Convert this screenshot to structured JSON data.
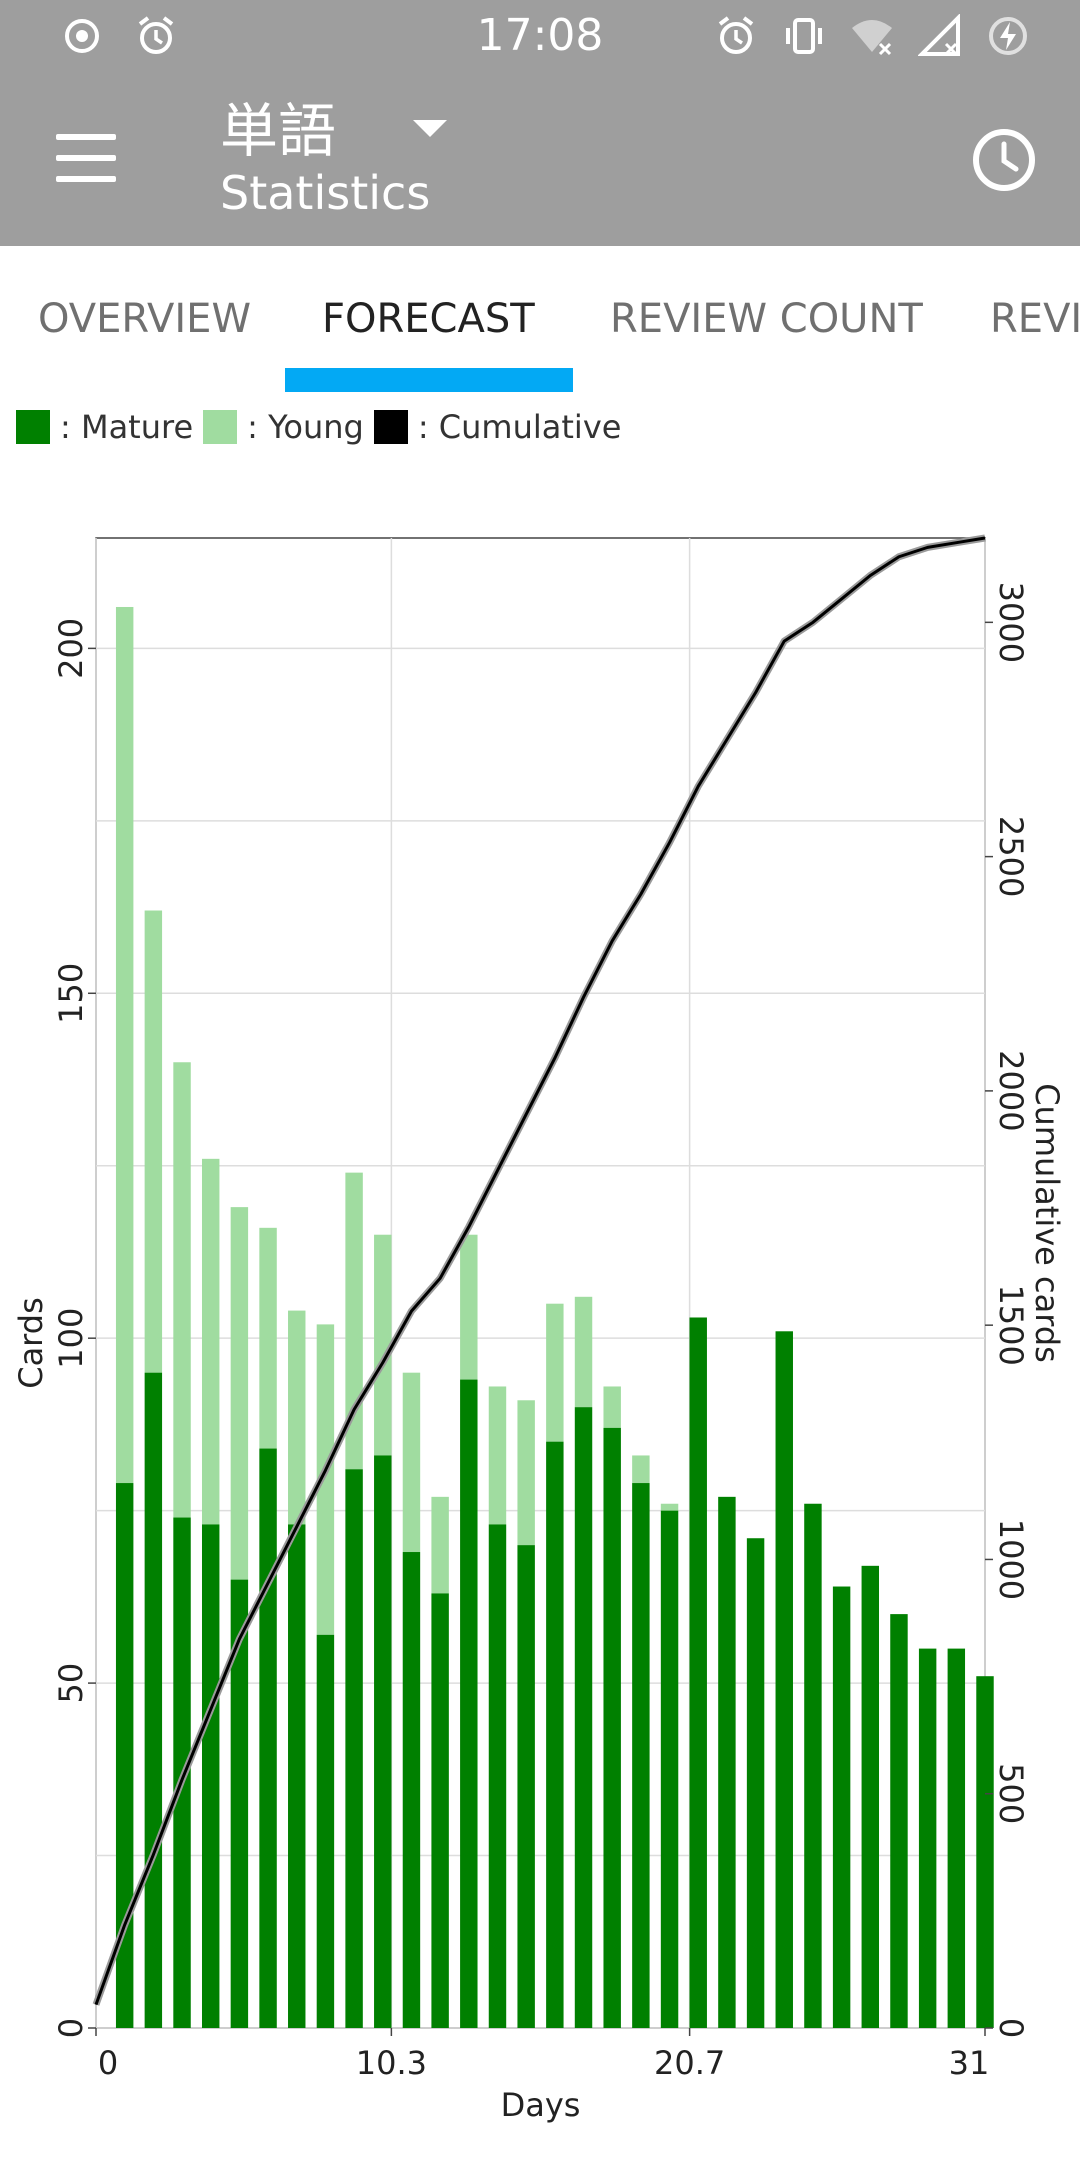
{
  "status_bar": {
    "time": "17:08",
    "left_icons": [
      "record-icon",
      "alarm-icon"
    ],
    "right_icons": [
      "alarm-icon",
      "vibrate-icon",
      "wifi-off-icon",
      "signal-off-icon",
      "battery-charging-icon"
    ]
  },
  "toolbar": {
    "title": "単語",
    "subtitle": "Statistics",
    "menu_icon": "menu-icon",
    "history_icon": "clock-icon"
  },
  "tabs": [
    {
      "label": "OVERVIEW",
      "active": false
    },
    {
      "label": "FORECAST",
      "active": true
    },
    {
      "label": "REVIEW COUNT",
      "active": false
    },
    {
      "label": "REVI",
      "active": false
    }
  ],
  "legend": [
    {
      "label": ": Mature",
      "color": "#008000"
    },
    {
      "label": ": Young",
      "color": "#a0dca0"
    },
    {
      "label": ": Cumulative",
      "color": "#000000"
    }
  ],
  "chart_data": {
    "type": "bar",
    "orientation": "rotated-90",
    "xlabel": "Days",
    "ylabel": "Cards",
    "y2label": "Cumulative cards",
    "x_ticks": [
      "0",
      "10.3",
      "20.7",
      "31"
    ],
    "y_ticks": [
      "0",
      "50",
      "100",
      "150",
      "200"
    ],
    "y2_ticks": [
      "0",
      "500",
      "1000",
      "1500",
      "2000",
      "2500",
      "3000"
    ],
    "xlim": [
      0,
      31
    ],
    "ylim": [
      0,
      216
    ],
    "y2lim": [
      0,
      3180
    ],
    "grid": true,
    "categories": [
      1,
      2,
      3,
      4,
      5,
      6,
      7,
      8,
      9,
      10,
      11,
      12,
      13,
      14,
      15,
      16,
      17,
      18,
      19,
      20,
      21,
      22,
      23,
      24,
      25,
      26,
      27,
      28,
      29,
      30,
      31
    ],
    "series": [
      {
        "name": "Mature",
        "color": "#008000",
        "values": [
          79,
          95,
          74,
          73,
          65,
          84,
          73,
          57,
          81,
          83,
          69,
          63,
          94,
          73,
          70,
          85,
          90,
          87,
          79,
          75,
          103,
          77,
          71,
          101,
          76,
          64,
          67,
          60,
          55,
          55,
          51
        ]
      },
      {
        "name": "Young",
        "color": "#a0dca0",
        "values": [
          127,
          67,
          66,
          53,
          54,
          32,
          31,
          45,
          43,
          32,
          26,
          14,
          21,
          20,
          21,
          20,
          16,
          6,
          4,
          1,
          0,
          0,
          0,
          0,
          0,
          0,
          0,
          0,
          0,
          0,
          0
        ]
      },
      {
        "name": "Cumulative",
        "color": "#000000",
        "x": [
          0,
          1,
          2,
          3,
          4,
          5,
          6,
          7,
          8,
          9,
          10,
          11,
          12,
          13,
          14,
          15,
          16,
          17,
          18,
          19,
          20,
          21,
          22,
          23,
          24,
          25,
          26,
          27,
          28,
          29,
          30,
          31
        ],
        "values": [
          50,
          220,
          370,
          530,
          680,
          830,
          950,
          1070,
          1190,
          1320,
          1420,
          1530,
          1600,
          1710,
          1830,
          1950,
          2070,
          2200,
          2320,
          2420,
          2530,
          2650,
          2750,
          2850,
          2960,
          3000,
          3050,
          3100,
          3140,
          3160,
          3170,
          3180
        ]
      }
    ]
  }
}
